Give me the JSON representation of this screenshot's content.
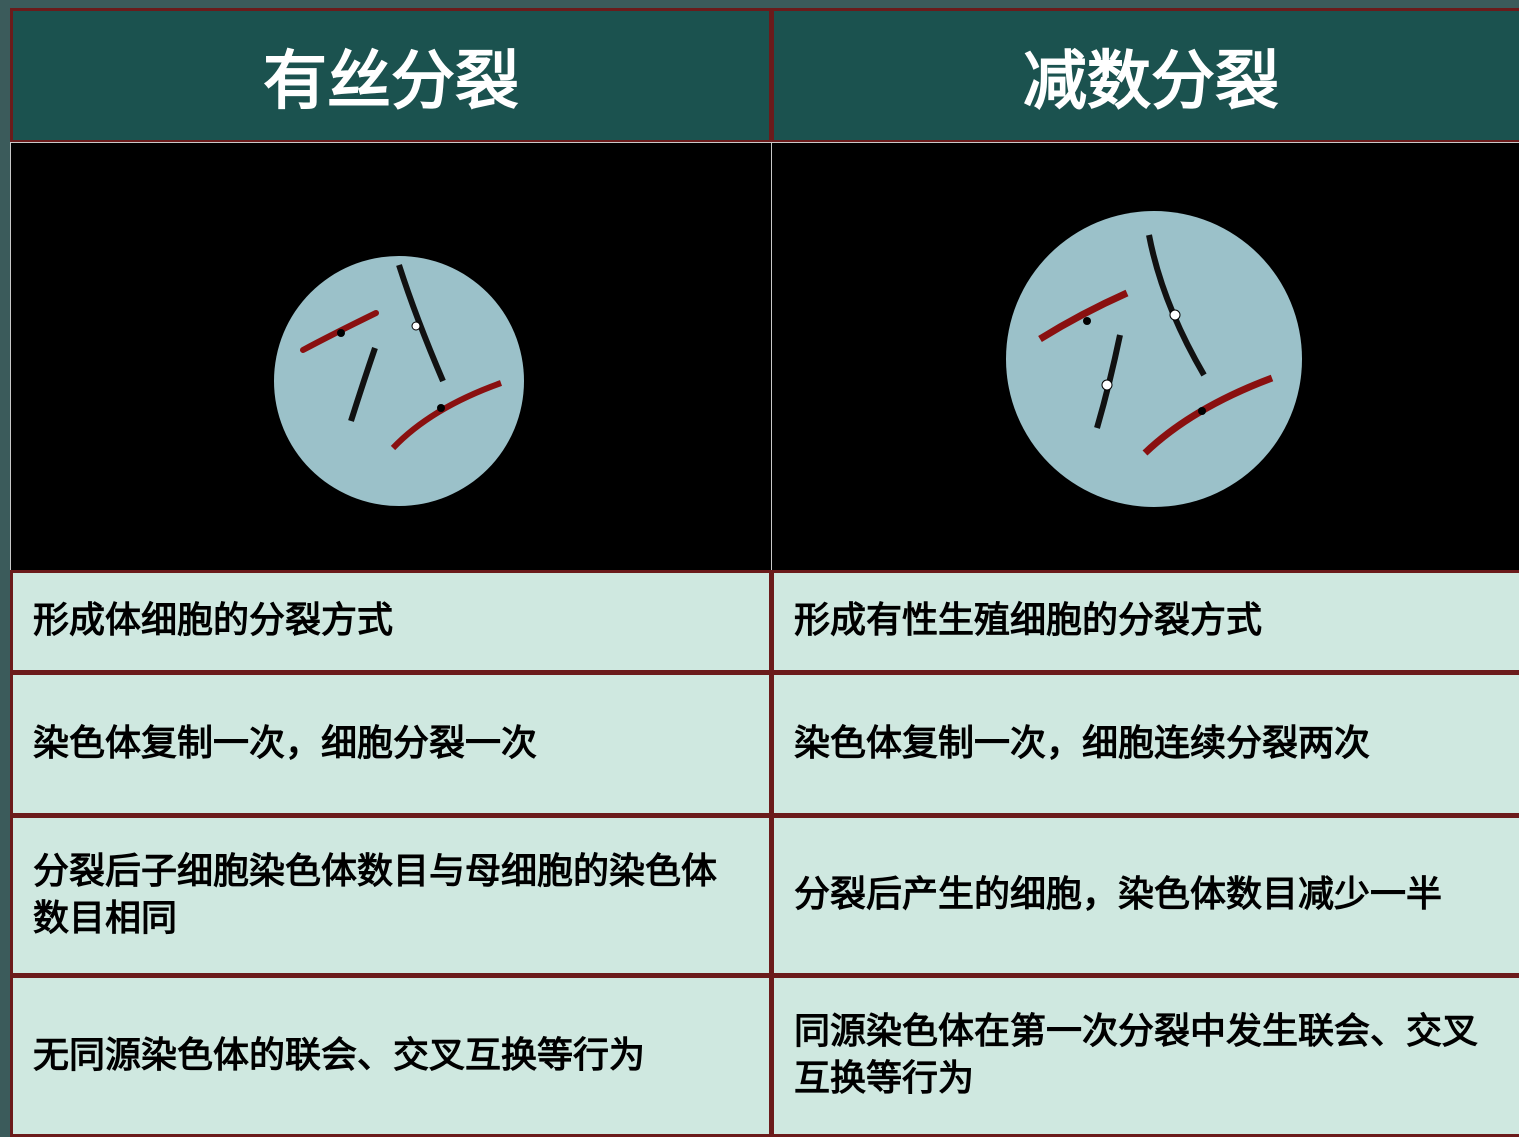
{
  "header": {
    "columns": [
      "有丝分裂",
      "减数分裂"
    ]
  },
  "table": {
    "rows": [
      [
        "形成体细胞的分裂方式",
        "形成有性生殖细胞的分裂方式"
      ],
      [
        "染色体复制一次，细胞分裂一次",
        "染色体复制一次，细胞连续分裂两次"
      ],
      [
        "分裂后子细胞染色体数目与母细胞的染色体数目相同",
        "分裂后产生的细胞，染色体数目减少一半"
      ],
      [
        "无同源染色体的联会、交叉互换等行为",
        "同源染色体在第一次分裂中发生联会、交叉互换等行为"
      ]
    ]
  }
}
